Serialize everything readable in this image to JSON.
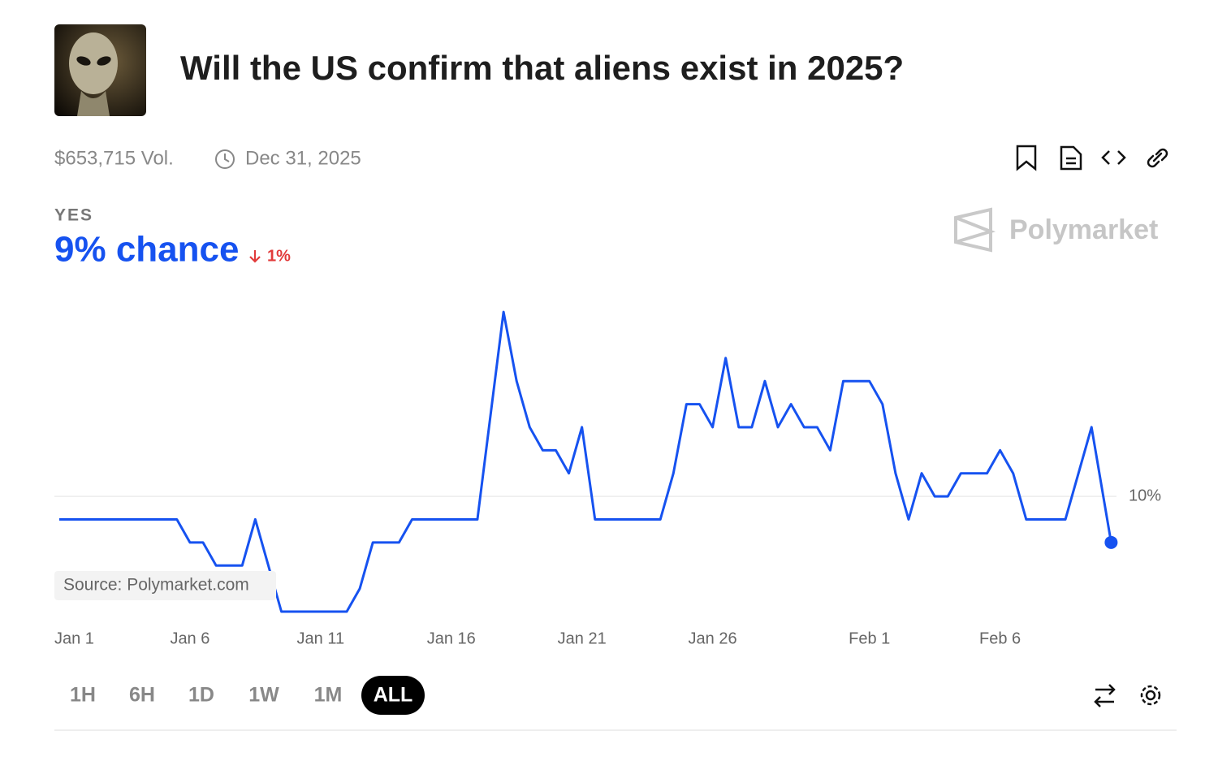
{
  "header": {
    "title": "Will the US confirm that aliens exist in 2025?",
    "volume": "$653,715 Vol.",
    "end_date": "Dec 31, 2025"
  },
  "outcome": {
    "label": "YES",
    "chance": "9% chance",
    "change": "1%"
  },
  "watermark": "Polymarket",
  "source": "Source: Polymarket.com",
  "ranges": [
    "1H",
    "6H",
    "1D",
    "1W",
    "1M",
    "ALL"
  ],
  "selected_range": "ALL",
  "chart_data": {
    "type": "line",
    "color": "#1652f0",
    "x": [
      0,
      4.5,
      5,
      5.5,
      6,
      7,
      7.5,
      8.5,
      11,
      11.5,
      12,
      13,
      13.5,
      16,
      17,
      17.5,
      18,
      18.5,
      19,
      19.5,
      20,
      20.5,
      23,
      23.5,
      24,
      24.5,
      25,
      25.5,
      26,
      26.5,
      27,
      27.5,
      28,
      28.5,
      29,
      29.5,
      30,
      31,
      31.5,
      32,
      32.5,
      33,
      33.5,
      34,
      34.5,
      35.5,
      36,
      36.5,
      37,
      38.5,
      39.5,
      40.25
    ],
    "values": [
      9.5,
      9.5,
      9,
      9,
      8.5,
      8.5,
      9.5,
      7.5,
      7.5,
      8,
      9,
      9,
      9.5,
      9.5,
      14,
      12.5,
      11.5,
      11,
      11,
      10.5,
      11.5,
      9.5,
      9.5,
      10.5,
      12,
      12,
      11.5,
      13,
      11.5,
      11.5,
      12.5,
      11.5,
      12,
      11.5,
      11.5,
      11,
      12.5,
      12.5,
      12,
      10.5,
      9.5,
      10.5,
      10,
      10,
      10.5,
      10.5,
      11,
      10.5,
      9.5,
      9.5,
      11.5,
      9
    ],
    "xlim": [
      0,
      40.3
    ],
    "xticks": [
      {
        "value": 0,
        "label": "Jan 1"
      },
      {
        "value": 5,
        "label": "Jan 6"
      },
      {
        "value": 10,
        "label": "Jan 11"
      },
      {
        "value": 15,
        "label": "Jan 16"
      },
      {
        "value": 20,
        "label": "Jan 21"
      },
      {
        "value": 25,
        "label": "Jan 26"
      },
      {
        "value": 31,
        "label": "Feb 1"
      },
      {
        "value": 36,
        "label": "Feb 6"
      }
    ],
    "ylim": [
      7.2,
      14.6
    ],
    "yticks": [
      {
        "value": 10,
        "label": "10%"
      }
    ],
    "grid": true
  }
}
